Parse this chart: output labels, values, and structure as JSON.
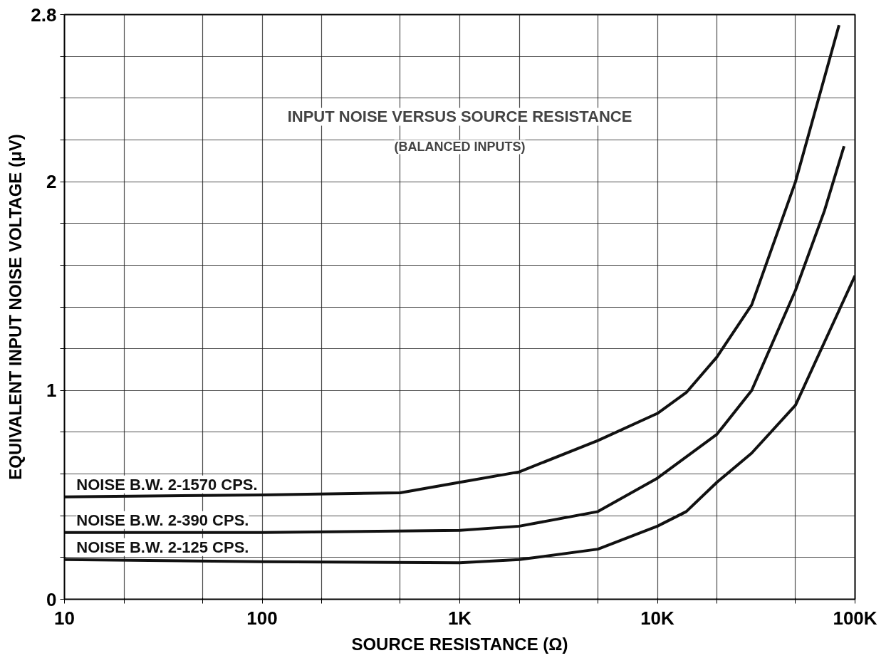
{
  "chart_data": {
    "type": "line",
    "title": "INPUT NOISE VERSUS SOURCE RESISTANCE",
    "subtitle": "(BALANCED INPUTS)",
    "xlabel": "SOURCE RESISTANCE (Ω)",
    "ylabel": "EQUIVALENT INPUT NOISE VOLTAGE (μV)",
    "log": "x",
    "grid": true,
    "line_style": "solid",
    "marker": "none",
    "xlim": [
      10,
      100000
    ],
    "ylim": [
      0,
      2.8
    ],
    "xticks": [
      10,
      {
        "value": 20,
        "label": null
      },
      {
        "value": 50,
        "label": null
      },
      100,
      {
        "value": 200,
        "label": null
      },
      {
        "value": 500,
        "label": null
      },
      {
        "value": 1000,
        "label": "1K"
      },
      {
        "value": 2000,
        "label": null
      },
      {
        "value": 5000,
        "label": null
      },
      {
        "value": 10000,
        "label": "10K"
      },
      {
        "value": 20000,
        "label": null
      },
      {
        "value": 50000,
        "label": null
      },
      {
        "value": 100000,
        "label": "100K"
      }
    ],
    "yticks": [
      0,
      {
        "value": 0.2,
        "label": null
      },
      {
        "value": 0.4,
        "label": null
      },
      {
        "value": 0.6,
        "label": null
      },
      {
        "value": 0.8,
        "label": null
      },
      1,
      {
        "value": 1.2,
        "label": null
      },
      {
        "value": 1.4,
        "label": null
      },
      {
        "value": 1.6,
        "label": null
      },
      {
        "value": 1.8,
        "label": null
      },
      2,
      {
        "value": 2.2,
        "label": null
      },
      {
        "value": 2.4,
        "label": null
      },
      {
        "value": 2.6,
        "label": null
      },
      2.8
    ],
    "series": [
      {
        "name": "NOISE B.W. 2-1570 CPS.",
        "color": "#111111",
        "x": [
          10,
          100,
          500,
          1000,
          2000,
          5000,
          10000,
          14000,
          20000,
          30000,
          50000,
          83000
        ],
        "values": [
          0.49,
          0.5,
          0.51,
          0.56,
          0.61,
          0.76,
          0.89,
          0.99,
          1.16,
          1.41,
          2.0,
          2.75
        ]
      },
      {
        "name": "NOISE B.W. 2-390 CPS.",
        "color": "#111111",
        "x": [
          10,
          100,
          1000,
          2000,
          5000,
          10000,
          20000,
          30000,
          50000,
          70000,
          88000
        ],
        "values": [
          0.32,
          0.32,
          0.33,
          0.35,
          0.42,
          0.58,
          0.79,
          1.0,
          1.48,
          1.86,
          2.17
        ]
      },
      {
        "name": "NOISE B.W. 2-125 CPS.",
        "color": "#111111",
        "x": [
          10,
          100,
          1000,
          2000,
          5000,
          10000,
          14000,
          20000,
          30000,
          50000,
          100000
        ],
        "values": [
          0.19,
          0.18,
          0.175,
          0.19,
          0.24,
          0.35,
          0.42,
          0.56,
          0.7,
          0.93,
          1.55
        ]
      }
    ]
  }
}
